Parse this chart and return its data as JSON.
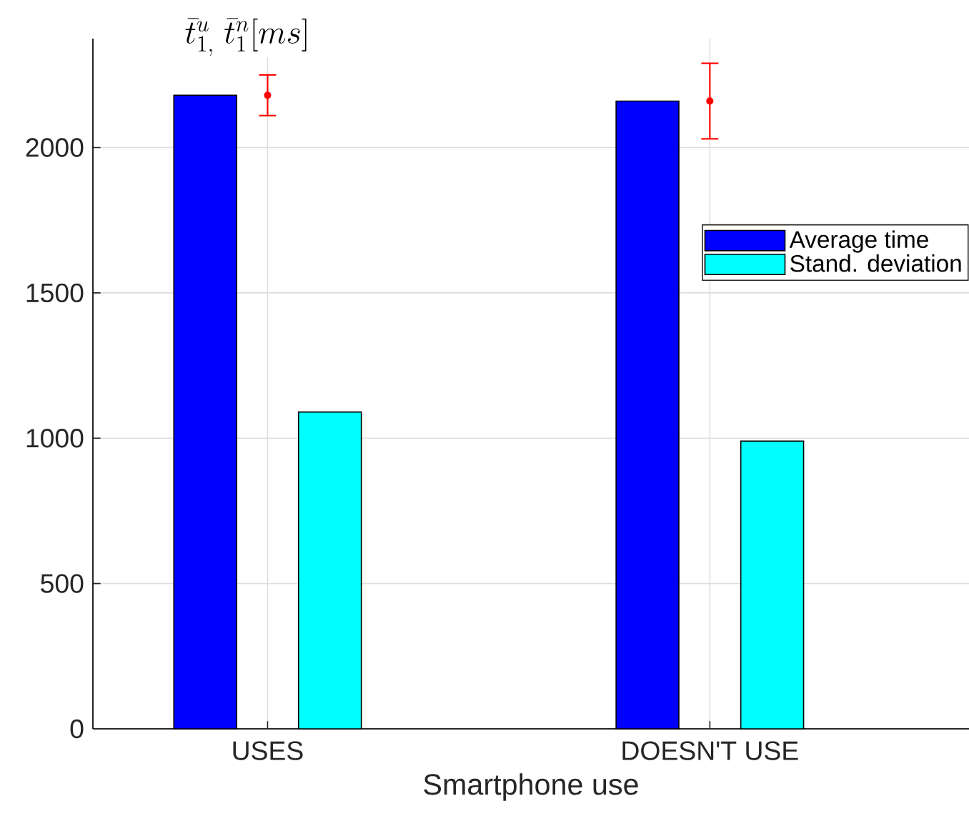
{
  "chart_data": {
    "type": "bar",
    "xlabel": "Smartphone use",
    "ylabel": "\\bar{t}_{1,}^{u}\\; \\bar{t}_{1}^{n}[ms]",
    "categories": [
      "USES",
      "DOESN'T USE"
    ],
    "series": [
      {
        "name": "Average time",
        "color": "#0000ff",
        "values": [
          2180,
          2160
        ]
      },
      {
        "name": "Stand. deviation",
        "color": "#00ffff",
        "values": [
          1090,
          990
        ]
      },
      {
        "type": "scatter",
        "color": "#ff0000",
        "marker": "circle",
        "x": [
          "USES",
          "DOESN'T USE"
        ],
        "values": [
          2180,
          2160
        ],
        "errors": [
          70,
          130
        ]
      }
    ],
    "ylim": [
      0,
      2375
    ],
    "yticks": [
      0,
      500,
      1000,
      1500,
      2000
    ],
    "grid": true,
    "legend": "right"
  }
}
